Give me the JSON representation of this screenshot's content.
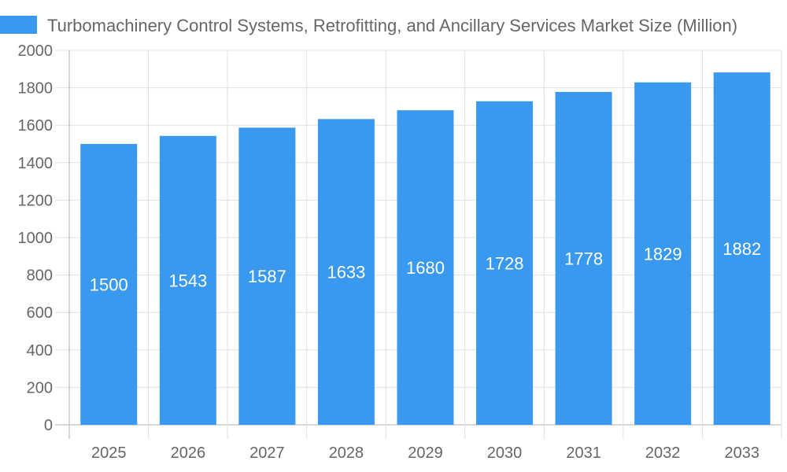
{
  "chart_data": {
    "type": "bar",
    "title": "",
    "xlabel": "",
    "ylabel": "",
    "categories": [
      "2025",
      "2026",
      "2027",
      "2028",
      "2029",
      "2030",
      "2031",
      "2032",
      "2033"
    ],
    "series": [
      {
        "name": "Turbomachinery Control Systems, Retrofitting, and Ancillary Services Market Size (Million)",
        "values": [
          1500,
          1543,
          1587,
          1633,
          1680,
          1728,
          1778,
          1829,
          1882
        ]
      }
    ],
    "ylim": [
      0,
      2000
    ],
    "yticks": [
      0,
      200,
      400,
      600,
      800,
      1000,
      1200,
      1400,
      1600,
      1800,
      2000
    ],
    "grid": true,
    "legend_position": "top-left",
    "data_labels": true,
    "colors": {
      "bar": "#3899ee",
      "grid": "#e0e0e0",
      "axis": "#b0b0b0",
      "text": "#666666",
      "label": "#ffffff"
    }
  }
}
